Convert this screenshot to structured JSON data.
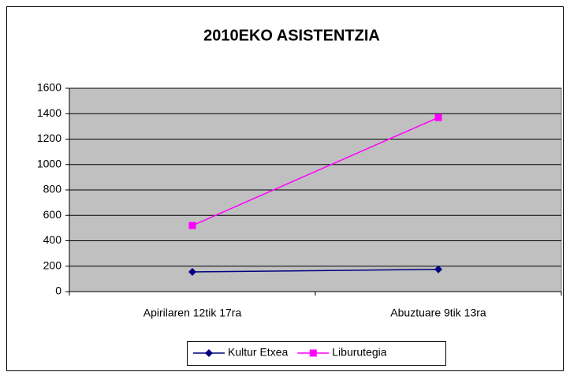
{
  "chart_data": {
    "type": "line",
    "title": "2010EKO ASISTENTZIA",
    "categories": [
      "Apirilaren 12tik 17ra",
      "Abuztuare 9tik 13ra"
    ],
    "series": [
      {
        "name": "Kultur Etxea",
        "color": "#000080",
        "marker": "diamond",
        "values": [
          155,
          175
        ]
      },
      {
        "name": "Liburutegia",
        "color": "#ff00ff",
        "marker": "square",
        "values": [
          520,
          1370
        ]
      }
    ],
    "ylim": [
      0,
      1600
    ],
    "yticks": [
      0,
      200,
      400,
      600,
      800,
      1000,
      1200,
      1400,
      1600
    ],
    "grid": true,
    "legend": "bottom",
    "plot_background": "#c0c0c0"
  }
}
